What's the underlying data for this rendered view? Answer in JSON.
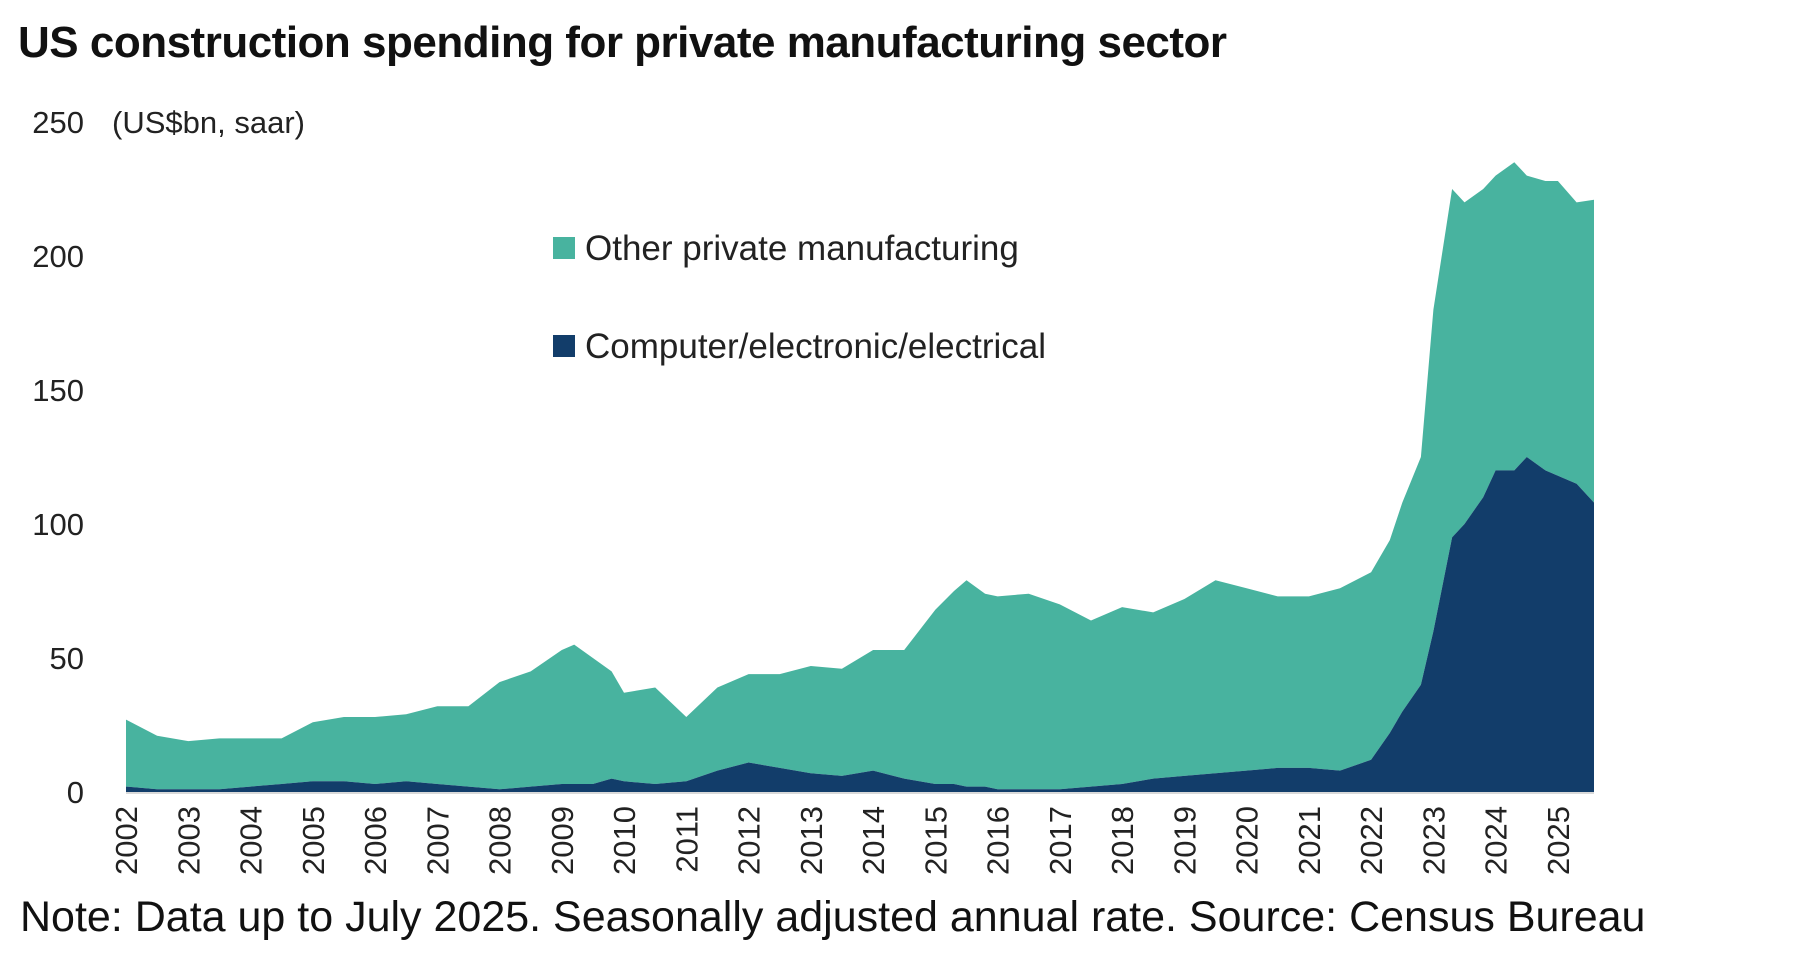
{
  "title": "US construction spending for private manufacturing sector",
  "note": "Note: Data up to July 2025. Seasonally adjusted annual rate. Source: Census Bureau",
  "colors": {
    "other": "#48b39f",
    "computer": "#123d6a"
  },
  "chart_data": {
    "type": "area",
    "stacked": true,
    "ylabel": "(US$bn, saar)",
    "ylim": [
      0,
      250
    ],
    "yticks": [
      "0",
      "50",
      "100",
      "150",
      "200",
      "250"
    ],
    "xlim": [
      2002.0,
      2025.58
    ],
    "xticks": [
      "2002",
      "2003",
      "2004",
      "2005",
      "2006",
      "2007",
      "2008",
      "2009",
      "2010",
      "2011",
      "2012",
      "2013",
      "2014",
      "2015",
      "2016",
      "2017",
      "2018",
      "2019",
      "2020",
      "2021",
      "2022",
      "2023",
      "2024",
      "2025"
    ],
    "grid": false,
    "legend_position": "top-center",
    "x": [
      2002.0,
      2002.5,
      2003.0,
      2003.5,
      2004.0,
      2004.5,
      2005.0,
      2005.5,
      2006.0,
      2006.5,
      2007.0,
      2007.5,
      2008.0,
      2008.5,
      2009.0,
      2009.2,
      2009.5,
      2009.8,
      2010.0,
      2010.5,
      2011.0,
      2011.5,
      2012.0,
      2012.5,
      2013.0,
      2013.5,
      2014.0,
      2014.5,
      2015.0,
      2015.3,
      2015.5,
      2015.8,
      2016.0,
      2016.5,
      2017.0,
      2017.5,
      2018.0,
      2018.5,
      2019.0,
      2019.5,
      2020.0,
      2020.5,
      2021.0,
      2021.5,
      2022.0,
      2022.3,
      2022.5,
      2022.8,
      2023.0,
      2023.3,
      2023.5,
      2023.8,
      2024.0,
      2024.3,
      2024.5,
      2024.8,
      2025.0,
      2025.3,
      2025.58
    ],
    "series": [
      {
        "name": "Other private manufacturing",
        "values": [
          25,
          20,
          18,
          19,
          18,
          17,
          22,
          24,
          25,
          25,
          29,
          30,
          40,
          43,
          50,
          52,
          47,
          40,
          33,
          36,
          24,
          31,
          33,
          35,
          40,
          40,
          45,
          48,
          65,
          72,
          77,
          72,
          72,
          73,
          69,
          62,
          66,
          62,
          66,
          72,
          68,
          64,
          64,
          68,
          70,
          72,
          78,
          85,
          120,
          130,
          120,
          115,
          110,
          115,
          105,
          108,
          110,
          105,
          113
        ]
      },
      {
        "name": "Computer/electronic/electrical",
        "values": [
          2,
          1,
          1,
          1,
          2,
          3,
          4,
          4,
          3,
          4,
          3,
          2,
          1,
          2,
          3,
          3,
          3,
          5,
          4,
          3,
          4,
          8,
          11,
          9,
          7,
          6,
          8,
          5,
          3,
          3,
          2,
          2,
          1,
          1,
          1,
          2,
          3,
          5,
          6,
          7,
          8,
          9,
          9,
          8,
          12,
          22,
          30,
          40,
          60,
          95,
          100,
          110,
          120,
          120,
          125,
          120,
          118,
          115,
          108
        ]
      }
    ]
  }
}
